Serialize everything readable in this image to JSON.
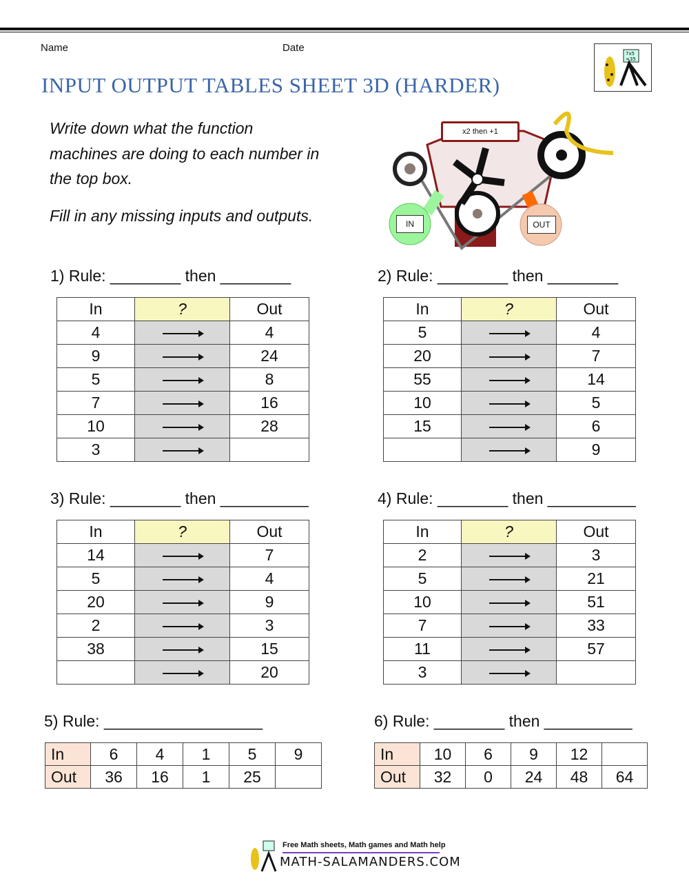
{
  "header": {
    "name_label": "Name",
    "date_label": "Date",
    "title": "INPUT OUTPUT TABLES SHEET 3D (HARDER)"
  },
  "instructions": [
    "Write down what the function",
    "machines are doing to each number in",
    "the top box.",
    "Fill in any missing inputs and outputs."
  ],
  "machine": {
    "rule_example": "x2 then +1",
    "in_label": "IN",
    "out_label": "OUT",
    "colors": {
      "in": "#9cf59c",
      "out": "#f5c9ae",
      "engine": "#8b1a1a"
    }
  },
  "headers": {
    "in": "In",
    "q": "?",
    "out": "Out"
  },
  "problems": [
    {
      "label": "1) Rule: ________ then ________",
      "rows": [
        [
          "4",
          "4"
        ],
        [
          "9",
          "24"
        ],
        [
          "5",
          "8"
        ],
        [
          "7",
          "16"
        ],
        [
          "10",
          "28"
        ],
        [
          "3",
          ""
        ]
      ]
    },
    {
      "label": "2) Rule: ________ then ________",
      "rows": [
        [
          "5",
          "4"
        ],
        [
          "20",
          "7"
        ],
        [
          "55",
          "14"
        ],
        [
          "10",
          "5"
        ],
        [
          "15",
          "6"
        ],
        [
          "",
          "9"
        ]
      ]
    },
    {
      "label": "3) Rule: ________ then __________",
      "rows": [
        [
          "14",
          "7"
        ],
        [
          "5",
          "4"
        ],
        [
          "20",
          "9"
        ],
        [
          "2",
          "3"
        ],
        [
          "38",
          "15"
        ],
        [
          "",
          "20"
        ]
      ]
    },
    {
      "label": "4) Rule: ________ then __________",
      "rows": [
        [
          "2",
          "3"
        ],
        [
          "5",
          "21"
        ],
        [
          "10",
          "51"
        ],
        [
          "7",
          "33"
        ],
        [
          "11",
          "57"
        ],
        [
          "3",
          ""
        ]
      ]
    }
  ],
  "horizontal": [
    {
      "label": "5) Rule: __________________",
      "in": [
        "6",
        "4",
        "1",
        "5",
        "9"
      ],
      "out": [
        "36",
        "16",
        "1",
        "25",
        ""
      ]
    },
    {
      "label": "6) Rule: ________ then __________",
      "in": [
        "10",
        "6",
        "9",
        "12",
        ""
      ],
      "out": [
        "32",
        "0",
        "24",
        "48",
        "64"
      ]
    }
  ],
  "footer": {
    "tagline": "Free Math sheets, Math games and Math help",
    "site": "MATH-SALAMANDERS.COM"
  }
}
